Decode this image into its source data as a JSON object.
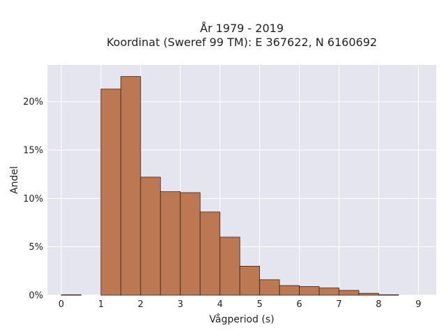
{
  "chart_data": {
    "type": "bar",
    "title": "År 1979 - 2019",
    "subtitle": "Koordinat (Sweref 99 TM): E 367622, N 6160692",
    "xlabel": "Vågperiod (s)",
    "ylabel": "Andel",
    "xlim": [
      -0.35,
      9.45
    ],
    "ylim": [
      0,
      0.238
    ],
    "x_ticks": [
      0,
      1,
      2,
      3,
      4,
      5,
      6,
      7,
      8,
      9
    ],
    "x_tick_labels": [
      "0",
      "1",
      "2",
      "3",
      "4",
      "5",
      "6",
      "7",
      "8",
      "9"
    ],
    "y_ticks": [
      0,
      0.05,
      0.1,
      0.15,
      0.2
    ],
    "y_tick_labels": [
      "0%",
      "5%",
      "10%",
      "15%",
      "20%"
    ],
    "bin_width": 0.5,
    "bins": [
      {
        "start": 0.0,
        "end": 0.5,
        "value": 0.0005
      },
      {
        "start": 0.5,
        "end": 1.0,
        "value": 0
      },
      {
        "start": 1.0,
        "end": 1.5,
        "value": 0.213
      },
      {
        "start": 1.5,
        "end": 2.0,
        "value": 0.226
      },
      {
        "start": 2.0,
        "end": 2.5,
        "value": 0.122
      },
      {
        "start": 2.5,
        "end": 3.0,
        "value": 0.107
      },
      {
        "start": 3.0,
        "end": 3.5,
        "value": 0.106
      },
      {
        "start": 3.5,
        "end": 4.0,
        "value": 0.086
      },
      {
        "start": 4.0,
        "end": 4.5,
        "value": 0.06
      },
      {
        "start": 4.5,
        "end": 5.0,
        "value": 0.03
      },
      {
        "start": 5.0,
        "end": 5.5,
        "value": 0.016
      },
      {
        "start": 5.5,
        "end": 6.0,
        "value": 0.01
      },
      {
        "start": 6.0,
        "end": 6.5,
        "value": 0.009
      },
      {
        "start": 6.5,
        "end": 7.0,
        "value": 0.0075
      },
      {
        "start": 7.0,
        "end": 7.5,
        "value": 0.005
      },
      {
        "start": 7.5,
        "end": 8.0,
        "value": 0.002
      },
      {
        "start": 8.0,
        "end": 8.5,
        "value": 0.0005
      }
    ],
    "grid": true,
    "colors": {
      "bar_fill": "#bb7852",
      "bar_stroke": "#3a2418",
      "plot_bg": "#e5e5ef",
      "grid": "#ffffff",
      "text": "#222222"
    }
  }
}
